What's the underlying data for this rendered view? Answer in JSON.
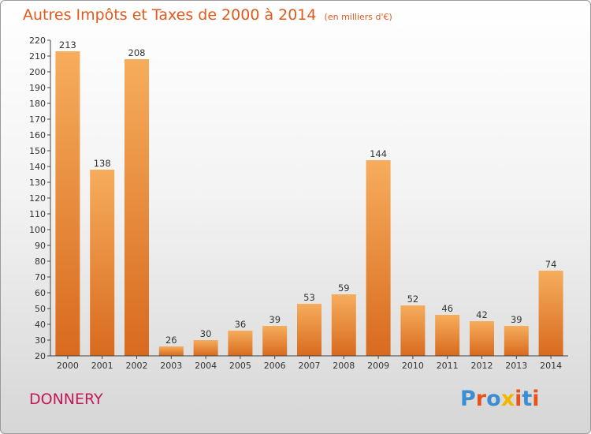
{
  "title": "Autres Impôts et Taxes de 2000 à 2014",
  "title_unit": "(en milliers d'€)",
  "location": "DONNERY",
  "logo": {
    "text": "Proxiti",
    "colors": [
      "#3b8fd1",
      "#e8531c",
      "#3b8fd1",
      "#f2b600",
      "#e8531c",
      "#3b8fd1",
      "#e8531c"
    ]
  },
  "colors": {
    "bar_light": "#f6ad5c",
    "bar_dark": "#d86a1e",
    "title": "#e05a1c",
    "location": "#c2185b"
  },
  "chart_data": {
    "type": "bar",
    "categories": [
      "2000",
      "2001",
      "2002",
      "2003",
      "2004",
      "2005",
      "2006",
      "2007",
      "2008",
      "2009",
      "2010",
      "2011",
      "2012",
      "2013",
      "2014"
    ],
    "values": [
      213,
      138,
      208,
      26,
      30,
      36,
      39,
      53,
      59,
      144,
      52,
      46,
      42,
      39,
      74
    ],
    "ylim": [
      20,
      220
    ],
    "yticks": [
      20,
      30,
      40,
      50,
      60,
      70,
      80,
      90,
      100,
      110,
      120,
      130,
      140,
      150,
      160,
      170,
      180,
      190,
      200,
      210,
      220
    ],
    "grid": false,
    "legend": "none"
  }
}
